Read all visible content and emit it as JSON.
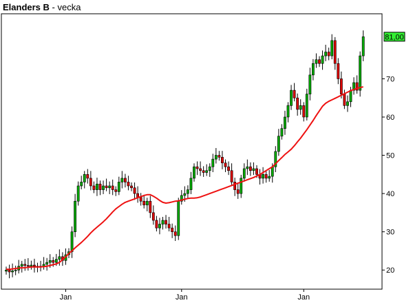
{
  "header": {
    "name": "Elanders B",
    "separator": "-",
    "period": "vecka"
  },
  "colors": {
    "up_candle": "#00aa00",
    "down_candle": "#dd0000",
    "ma_line": "#ee1111",
    "price_box": "#33ee33",
    "frame": "#000000"
  },
  "chart_data": {
    "type": "candlestick",
    "title": "Elanders B - vecka",
    "y_ticks": [
      "20",
      "30",
      "40",
      "50",
      "60",
      "70"
    ],
    "x_ticks": [
      "Jan",
      "Jan",
      "Jan"
    ],
    "ylim": [
      15,
      87
    ],
    "last_price_label": "81,00",
    "last_price": 81.0,
    "grid": false,
    "closes": [
      20.0,
      19.5,
      19.8,
      20.0,
      21.0,
      21.5,
      21.2,
      21.0,
      21.3,
      21.0,
      20.8,
      21.0,
      21.5,
      22.0,
      22.5,
      22.0,
      22.8,
      23.5,
      22.5,
      24.0,
      24.8,
      30.0,
      38.0,
      42.0,
      43.0,
      45.0,
      44.0,
      42.0,
      41.0,
      42.5,
      41.0,
      42.0,
      41.5,
      42.0,
      41.0,
      40.5,
      43.0,
      44.0,
      43.0,
      42.0,
      41.5,
      40.0,
      39.0,
      38.0,
      37.0,
      38.0,
      35.0,
      33.0,
      31.0,
      32.0,
      33.0,
      32.0,
      31.0,
      30.0,
      29.0,
      38.0,
      39.5,
      40.0,
      41.0,
      44.0,
      47.0,
      46.5,
      46.0,
      45.5,
      46.0,
      47.0,
      49.0,
      50.0,
      49.5,
      48.0,
      47.0,
      46.0,
      43.0,
      41.0,
      40.0,
      44.0,
      46.5,
      47.0,
      46.0,
      46.5,
      45.0,
      44.0,
      45.0,
      44.0,
      44.5,
      47.0,
      51.0,
      55.0,
      57.0,
      60.0,
      63.0,
      67.0,
      65.0,
      62.0,
      63.0,
      60.0,
      66.0,
      71.0,
      74.0,
      75.0,
      74.0,
      76.0,
      77.0,
      76.0,
      80.0,
      74.0,
      70.0,
      66.0,
      63.0,
      64.0,
      67.0,
      69.0,
      67.0,
      76.0,
      81.0
    ],
    "moving_average": [
      20.2,
      20.2,
      20.3,
      20.4,
      20.5,
      20.6,
      20.6,
      20.7,
      20.8,
      20.8,
      20.8,
      20.8,
      20.9,
      21.0,
      21.2,
      21.4,
      21.6,
      22.0,
      22.7,
      23.5,
      24.3,
      25.0,
      25.8,
      26.5,
      27.2,
      28.0,
      28.8,
      29.7,
      30.5,
      31.2,
      31.9,
      32.6,
      33.4,
      34.3,
      35.2,
      36.0,
      36.6,
      37.2,
      37.7,
      38.0,
      38.3,
      38.6,
      38.9,
      39.2,
      39.5,
      39.7,
      39.7,
      39.3,
      38.8,
      38.2,
      37.7,
      37.5,
      37.6,
      37.8,
      38.0,
      38.1,
      38.3,
      38.5,
      38.7,
      38.8,
      38.8,
      38.9,
      39.1,
      39.4,
      39.7,
      40.0,
      40.3,
      40.6,
      40.9,
      41.2,
      41.5,
      41.8,
      42.1,
      42.4,
      42.7,
      43.0,
      43.3,
      43.6,
      43.9,
      44.2,
      44.6,
      45.0,
      45.5,
      46.0,
      46.5,
      47.0,
      47.8,
      48.6,
      49.4,
      50.2,
      50.9,
      51.6,
      52.5,
      53.5,
      54.5,
      55.6,
      56.7,
      57.9,
      59.1,
      60.4,
      61.6,
      62.8,
      63.6,
      64.1,
      64.5,
      64.9,
      65.3,
      65.7,
      66.1,
      66.5,
      66.9,
      67.2,
      67.5,
      67.7,
      67.9
    ]
  }
}
